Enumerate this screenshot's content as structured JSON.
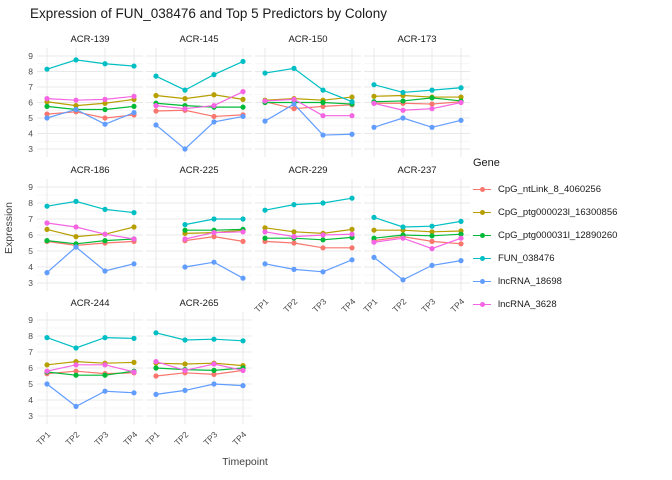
{
  "title": "Expression of FUN_038476 and Top 5 Predictors by Colony",
  "x_axis": {
    "title": "Timepoint",
    "ticks": [
      "TP1",
      "TP2",
      "TP3",
      "TP4"
    ]
  },
  "y_axis": {
    "title": "Expression",
    "ticks": [
      3,
      4,
      5,
      6,
      7,
      8,
      9
    ]
  },
  "legend": {
    "title": "Gene",
    "entries": [
      {
        "label": "CpG_ntLink_8_4060256",
        "color": "#F8766D"
      },
      {
        "label": "CpG_ptg000023l_16300856",
        "color": "#B79F00"
      },
      {
        "label": "CpG_ptg000031l_12890260",
        "color": "#00BA38"
      },
      {
        "label": "FUN_038476",
        "color": "#00BFC4"
      },
      {
        "label": "lncRNA_18698",
        "color": "#619CFF"
      },
      {
        "label": "lncRNA_3628",
        "color": "#F564E3"
      }
    ]
  },
  "chart_data": {
    "type": "line",
    "title": "Expression of FUN_038476 and Top 5 Predictors by Colony",
    "xlabel": "Timepoint",
    "ylabel": "Expression",
    "x_categories": [
      "TP1",
      "TP2",
      "TP3",
      "TP4"
    ],
    "ylim": [
      3,
      9
    ],
    "y_ticks": [
      3,
      4,
      5,
      6,
      7,
      8,
      9
    ],
    "grid": true,
    "major_grid_color": "#E8E8E8",
    "minor_grid_color": "#F4F4F4",
    "legend_position": "right",
    "legend_title": "Gene",
    "facet_by": "Colony",
    "series": [
      {
        "name": "CpG_ntLink_8_4060256",
        "color": "#F8766D"
      },
      {
        "name": "CpG_ptg000023l_16300856",
        "color": "#B79F00"
      },
      {
        "name": "CpG_ptg000031l_12890260",
        "color": "#00BA38"
      },
      {
        "name": "FUN_038476",
        "color": "#00BFC4"
      },
      {
        "name": "lncRNA_18698",
        "color": "#619CFF"
      },
      {
        "name": "lncRNA_3628",
        "color": "#F564E3"
      }
    ],
    "facets": [
      {
        "name": "ACR-139",
        "values": [
          [
            5.25,
            5.4,
            5.0,
            5.2
          ],
          [
            6.05,
            5.8,
            5.95,
            6.2
          ],
          [
            5.75,
            5.55,
            5.55,
            5.75
          ],
          [
            8.15,
            8.75,
            8.5,
            8.35
          ],
          [
            5.0,
            5.55,
            4.6,
            5.35
          ],
          [
            6.25,
            6.15,
            6.2,
            6.4
          ]
        ]
      },
      {
        "name": "ACR-145",
        "values": [
          [
            5.45,
            5.5,
            5.1,
            5.2
          ],
          [
            6.45,
            6.25,
            6.5,
            6.2
          ],
          [
            5.95,
            5.8,
            5.7,
            5.7
          ],
          [
            7.7,
            6.8,
            7.8,
            8.65
          ],
          [
            4.55,
            3.0,
            4.75,
            5.1
          ],
          [
            5.8,
            5.6,
            5.8,
            6.7
          ]
        ]
      },
      {
        "name": "ACR-150",
        "values": [
          [
            6.05,
            5.6,
            5.75,
            5.85
          ],
          [
            6.15,
            6.25,
            6.15,
            6.35
          ],
          [
            6.0,
            6.0,
            6.0,
            5.9
          ],
          [
            7.9,
            8.2,
            6.8,
            6.05
          ],
          [
            4.8,
            5.9,
            3.9,
            3.95
          ],
          [
            6.1,
            6.2,
            5.15,
            5.15
          ]
        ]
      },
      {
        "name": "ACR-173",
        "values": [
          [
            5.95,
            5.95,
            5.9,
            6.05
          ],
          [
            6.4,
            6.45,
            6.35,
            6.35
          ],
          [
            6.05,
            6.1,
            6.3,
            6.1
          ],
          [
            7.15,
            6.65,
            6.8,
            6.95
          ],
          [
            4.4,
            5.0,
            4.4,
            4.85
          ],
          [
            5.95,
            5.5,
            5.6,
            6.0
          ]
        ]
      },
      {
        "name": "ACR-186",
        "values": [
          [
            5.6,
            5.35,
            5.5,
            5.6
          ],
          [
            6.35,
            5.9,
            6.05,
            6.5
          ],
          [
            5.65,
            5.45,
            5.65,
            5.75
          ],
          [
            7.8,
            8.1,
            7.6,
            7.4
          ],
          [
            3.65,
            5.25,
            3.75,
            4.2
          ],
          [
            6.75,
            6.5,
            6.05,
            5.75
          ]
        ]
      },
      {
        "name": "ACR-225",
        "values": [
          [
            null,
            5.65,
            5.9,
            5.6
          ],
          [
            null,
            6.1,
            6.15,
            6.3
          ],
          [
            null,
            6.3,
            6.3,
            6.35
          ],
          [
            null,
            6.65,
            7.0,
            7.0
          ],
          [
            null,
            4.0,
            4.3,
            3.3
          ],
          [
            null,
            5.75,
            6.15,
            6.2
          ]
        ]
      },
      {
        "name": "ACR-229",
        "values": [
          [
            5.6,
            5.5,
            5.2,
            5.2
          ],
          [
            6.45,
            6.2,
            6.1,
            6.35
          ],
          [
            5.8,
            5.8,
            5.7,
            5.85
          ],
          [
            7.55,
            7.9,
            8.0,
            8.3
          ],
          [
            4.2,
            3.85,
            3.7,
            4.45
          ],
          [
            6.2,
            5.9,
            6.0,
            6.05
          ]
        ]
      },
      {
        "name": "ACR-237",
        "values": [
          [
            5.65,
            5.9,
            5.6,
            5.45
          ],
          [
            6.3,
            6.3,
            6.2,
            6.25
          ],
          [
            5.8,
            6.0,
            5.95,
            6.05
          ],
          [
            7.1,
            6.5,
            6.55,
            6.85
          ],
          [
            4.6,
            3.2,
            4.1,
            4.4
          ],
          [
            5.55,
            5.8,
            5.15,
            5.8
          ]
        ]
      },
      {
        "name": "ACR-244",
        "values": [
          [
            5.65,
            5.8,
            5.65,
            5.7
          ],
          [
            6.2,
            6.4,
            6.3,
            6.35
          ],
          [
            5.75,
            5.55,
            5.55,
            5.8
          ],
          [
            7.9,
            7.25,
            7.9,
            7.85
          ],
          [
            5.0,
            3.6,
            4.55,
            4.45
          ],
          [
            5.8,
            6.2,
            6.2,
            5.75
          ]
        ]
      },
      {
        "name": "ACR-265",
        "values": [
          [
            5.5,
            5.7,
            5.6,
            5.85
          ],
          [
            6.3,
            6.25,
            6.3,
            6.15
          ],
          [
            6.0,
            5.9,
            5.85,
            6.0
          ],
          [
            8.2,
            7.75,
            7.8,
            7.7
          ],
          [
            4.35,
            4.6,
            5.0,
            4.9
          ],
          [
            6.4,
            5.85,
            6.25,
            5.85
          ]
        ]
      }
    ]
  }
}
